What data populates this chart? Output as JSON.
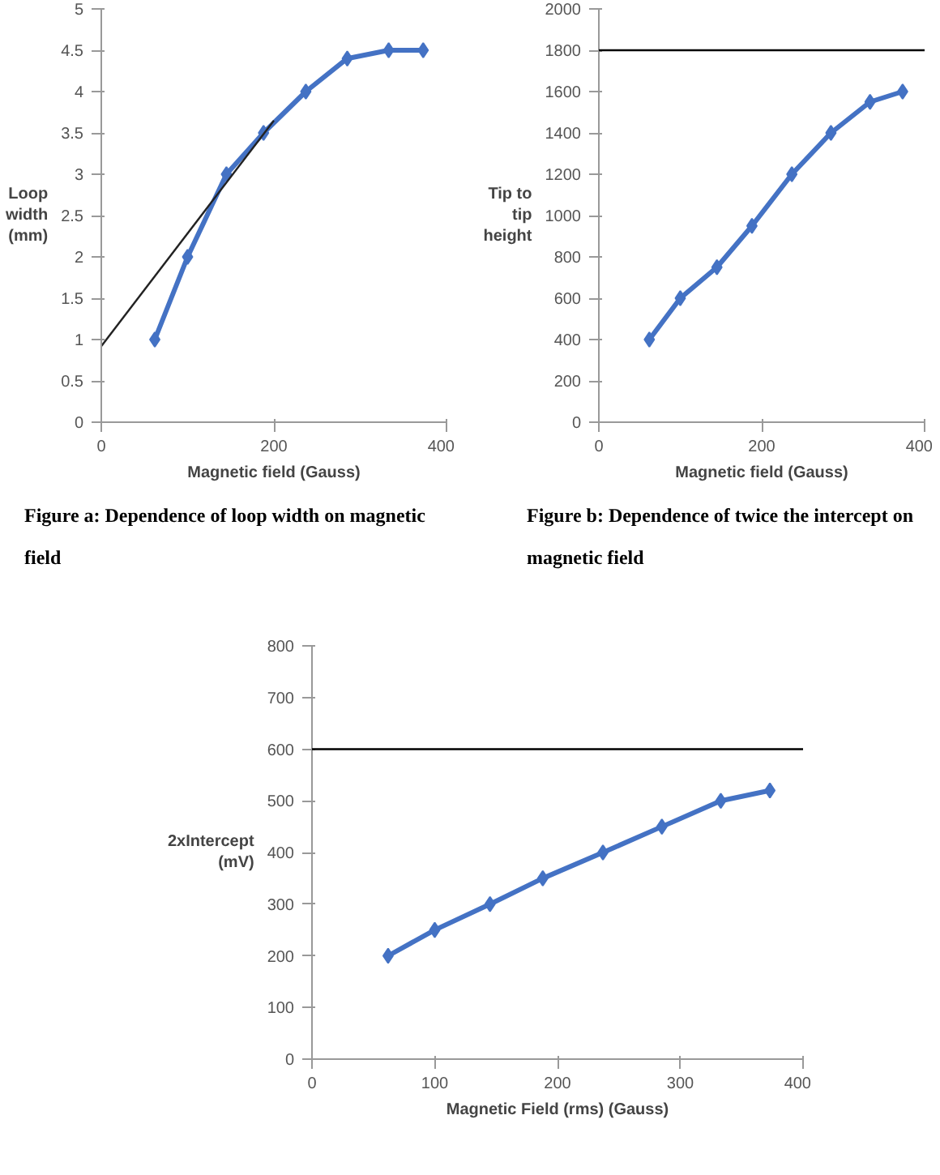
{
  "chart_data": [
    {
      "type": "line",
      "ylabel": "Loop width (mm)",
      "xlabel": "Magnetic field (Gauss)",
      "xlim": [
        0,
        400
      ],
      "xticks": [
        0,
        200,
        400
      ],
      "ylim": [
        0,
        5
      ],
      "yticks": [
        0,
        0.5,
        1,
        1.5,
        2,
        2.5,
        3,
        3.5,
        4,
        4.5,
        5
      ],
      "marker": "diamond",
      "grid": false,
      "series": [
        {
          "color": "#4472c4",
          "x": [
            62,
            100,
            145,
            188,
            237,
            285,
            333,
            373
          ],
          "values": [
            1,
            2,
            3,
            3.5,
            4,
            4.4,
            4.5,
            4.5
          ]
        },
        {
          "type": "line",
          "color": "#222222",
          "marker": "none",
          "x": [
            0,
            200
          ],
          "values": [
            0.92,
            3.65
          ]
        }
      ],
      "annotations": [
        "Figure a: Dependence of loop width on magnetic field"
      ]
    },
    {
      "type": "line",
      "ylabel": "Tip to tip height",
      "xlabel": "Magnetic field (Gauss)",
      "xlim": [
        0,
        400
      ],
      "xticks": [
        0,
        200,
        400
      ],
      "ylim": [
        0,
        2000
      ],
      "yticks": [
        0,
        200,
        400,
        600,
        800,
        1000,
        1200,
        1400,
        1600,
        1800,
        2000
      ],
      "marker": "diamond",
      "grid": false,
      "series": [
        {
          "color": "#4472c4",
          "x": [
            62,
            100,
            145,
            188,
            237,
            285,
            333,
            373
          ],
          "values": [
            400,
            600,
            750,
            950,
            1200,
            1400,
            1550,
            1600
          ]
        }
      ],
      "ref_lines": [
        {
          "axis": "y",
          "value": 1800,
          "color": "#000000"
        }
      ],
      "annotations": [
        "Figure b: Dependence of twice the intercept on magnetic field"
      ]
    },
    {
      "type": "line",
      "ylabel": "2xIntercept (mV)",
      "xlabel": "Magnetic Field (rms) (Gauss)",
      "xlim": [
        0,
        400
      ],
      "xticks": [
        0,
        100,
        200,
        300,
        400
      ],
      "ylim": [
        0,
        800
      ],
      "yticks": [
        0,
        100,
        200,
        300,
        400,
        500,
        600,
        700,
        800
      ],
      "marker": "diamond",
      "grid": false,
      "series": [
        {
          "color": "#4472c4",
          "x": [
            62,
            100,
            145,
            188,
            237,
            285,
            333,
            373
          ],
          "values": [
            200,
            250,
            300,
            350,
            400,
            450,
            500,
            520
          ]
        }
      ],
      "ref_lines": [
        {
          "axis": "y",
          "value": 600,
          "color": "#000000"
        }
      ]
    }
  ]
}
